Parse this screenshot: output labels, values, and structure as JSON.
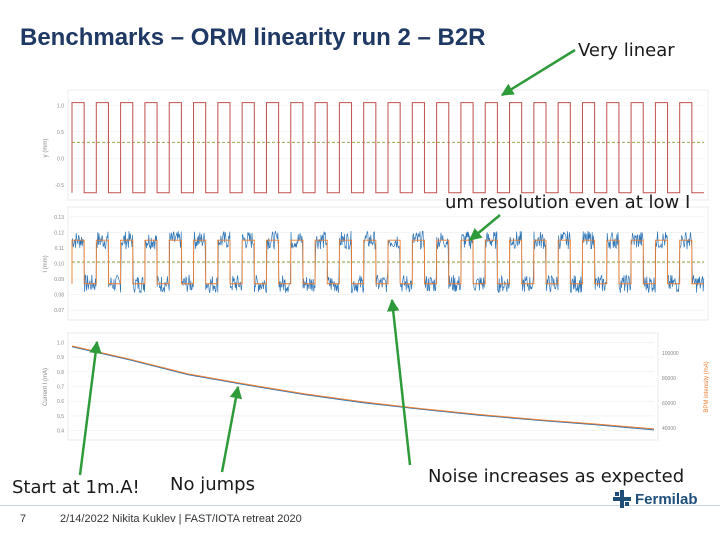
{
  "title": "Benchmarks – ORM linearity run 2 – B2R",
  "annotations": {
    "very_linear": "Very linear",
    "um_resolution": "um resolution even at low I",
    "start": "Start at 1m.A!",
    "no_jumps": "No jumps",
    "noise": "Noise increases as expected"
  },
  "footer": {
    "page_number": "7",
    "text": "2/14/2022   Nikita Kuklev | FAST/IOTA retreat 2020",
    "logo_text": "Fermilab"
  },
  "colors": {
    "title": "#1f3864",
    "arrow": "#2e9a3a",
    "square_wave": "#c0504d",
    "noisy_trace": "#2e75b6",
    "mean_trace": "#ed7d31",
    "dashed_ref": "#8a9a3a"
  },
  "chart_data": [
    {
      "type": "line",
      "ylabel": "y (mm)",
      "yticks": [
        1.0,
        0.5,
        0.0,
        -0.5
      ],
      "ytick_labels": [
        "1.0",
        "0.5",
        "0.0",
        "-0.5"
      ],
      "ylim": [
        -0.75,
        1.25
      ],
      "series": [
        {
          "name": "",
          "shape": "square-wave",
          "high": 1.05,
          "low": -0.65,
          "periods": 26,
          "dashed_ref": 0.3
        }
      ]
    },
    {
      "type": "line",
      "ylabel": "I (mm)",
      "yticks": [
        0.13,
        0.12,
        0.11,
        0.1,
        0.09,
        0.08,
        0.07
      ],
      "ytick_labels": [
        "0.13",
        "0.12",
        "0.11",
        "0.10",
        "0.09",
        "0.08",
        "0.07"
      ],
      "ylim": [
        0.065,
        0.135
      ],
      "series": [
        {
          "name": "",
          "shape": "noisy-square-wave",
          "high": 0.115,
          "low": 0.087,
          "periods": 26,
          "dashed_ref": 0.101
        }
      ]
    },
    {
      "type": "line",
      "ylabel": "Current I (mA)",
      "ylabel_right": "BPM intensity (mA)",
      "yticks": [
        1.0,
        0.9,
        0.8,
        0.7,
        0.6,
        0.5,
        0.4
      ],
      "ytick_labels": [
        "1.0",
        "0.9",
        "0.8",
        "0.7",
        "0.6",
        "0.5",
        "0.4"
      ],
      "ylim": [
        0.35,
        1.05
      ],
      "yticks_right": [
        "100000",
        "80000",
        "60000",
        "40000"
      ],
      "series": [
        {
          "name": "",
          "x": [
            0,
            0.1,
            0.2,
            0.3,
            0.4,
            0.5,
            0.6,
            0.7,
            0.8,
            0.9,
            1.0
          ],
          "y": [
            0.97,
            0.88,
            0.78,
            0.71,
            0.645,
            0.59,
            0.545,
            0.505,
            0.47,
            0.44,
            0.405
          ]
        },
        {
          "name": "",
          "x": [
            0,
            0.1,
            0.2,
            0.3,
            0.4,
            0.5,
            0.6,
            0.7,
            0.8,
            0.9,
            1.0
          ],
          "y": [
            0.975,
            0.885,
            0.785,
            0.715,
            0.65,
            0.595,
            0.55,
            0.51,
            0.475,
            0.445,
            0.412
          ]
        }
      ]
    }
  ]
}
